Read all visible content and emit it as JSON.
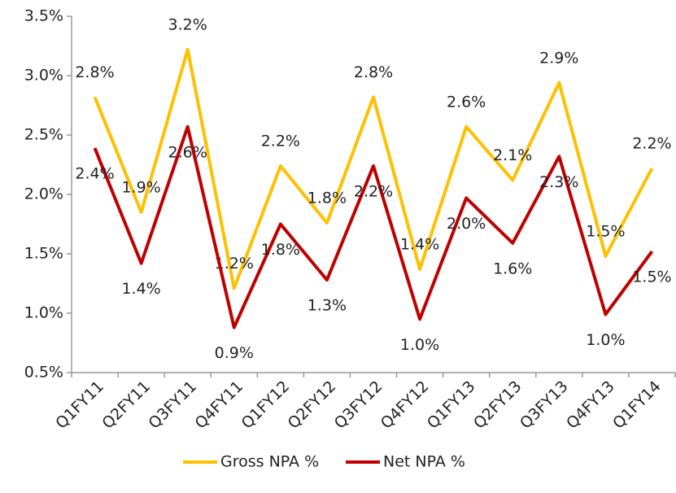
{
  "chart_data": {
    "type": "line",
    "categories": [
      "Q1FY11",
      "Q2FY11",
      "Q3FY11",
      "Q4FY11",
      "Q1FY12",
      "Q2FY12",
      "Q3FY12",
      "Q4FY12",
      "Q1FY13",
      "Q2FY13",
      "Q3FY13",
      "Q4FY13",
      "Q1FY14"
    ],
    "series": [
      {
        "name": "Gross NPA %",
        "color": "#ffc000",
        "values": [
          2.82,
          1.85,
          3.22,
          1.21,
          2.24,
          1.76,
          2.82,
          1.37,
          2.57,
          2.12,
          2.94,
          1.48,
          2.22
        ],
        "value_labels": [
          "2.8%",
          "1.9%",
          "3.2%",
          "1.2%",
          "2.2%",
          "1.8%",
          "2.8%",
          "1.4%",
          "2.6%",
          "2.1%",
          "2.9%",
          "1.5%",
          "2.2%"
        ]
      },
      {
        "name": "Net NPA %",
        "color": "#c00000",
        "values": [
          2.39,
          1.42,
          2.57,
          0.88,
          1.75,
          1.28,
          2.24,
          0.95,
          1.97,
          1.59,
          2.32,
          0.99,
          1.52
        ],
        "value_labels": [
          "2.4%",
          "1.4%",
          "2.6%",
          "0.9%",
          "1.8%",
          "1.3%",
          "2.2%",
          "1.0%",
          "2.0%",
          "1.6%",
          "2.3%",
          "1.0%",
          "1.5%"
        ]
      }
    ],
    "ylim": [
      0.5,
      3.5
    ],
    "yticks": [
      {
        "value": 0.5,
        "label": "0.5%"
      },
      {
        "value": 1.0,
        "label": "1.0%"
      },
      {
        "value": 1.5,
        "label": "1.5%"
      },
      {
        "value": 2.0,
        "label": "2.0%"
      },
      {
        "value": 2.5,
        "label": "2.5%"
      },
      {
        "value": 3.0,
        "label": "3.0%"
      },
      {
        "value": 3.5,
        "label": "3.5%"
      }
    ],
    "legend": "bottom"
  }
}
